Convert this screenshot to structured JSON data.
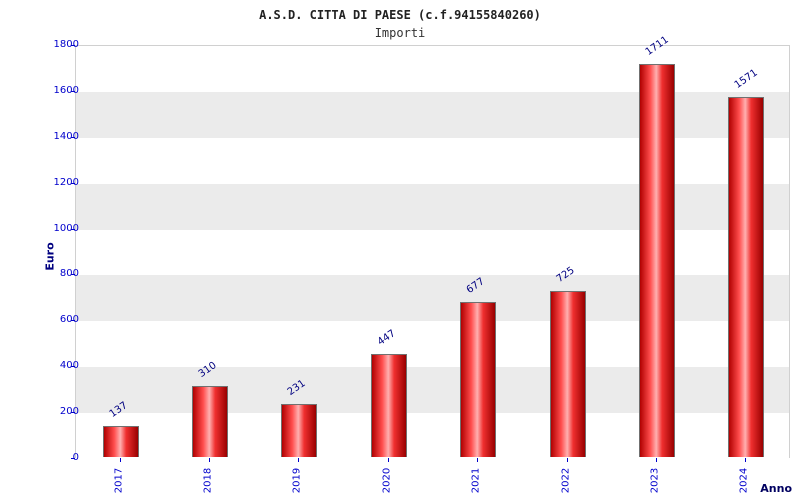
{
  "chart_data": {
    "type": "bar",
    "title": "A.S.D. CITTA DI PAESE (c.f.94155840260)",
    "subtitle": "Importi",
    "xlabel": "Anno",
    "ylabel": "Euro",
    "categories": [
      "2017",
      "2018",
      "2019",
      "2020",
      "2021",
      "2022",
      "2023",
      "2024"
    ],
    "values": [
      137,
      310,
      231,
      447,
      677,
      725,
      1711,
      1571
    ],
    "ylim": [
      0,
      1800
    ],
    "ytick_step": 200,
    "grid": "alternating-bands",
    "legend": "none",
    "colors": {
      "bar_main": "#e01a1a",
      "bar_highlight": "#ffb0b0",
      "bar_shadow": "#990000",
      "tick_label": "#0000cc",
      "value_label": "#000080",
      "axis_title": "#000080",
      "band_light": "#ffffff",
      "band_dark": "#ebebeb"
    }
  }
}
